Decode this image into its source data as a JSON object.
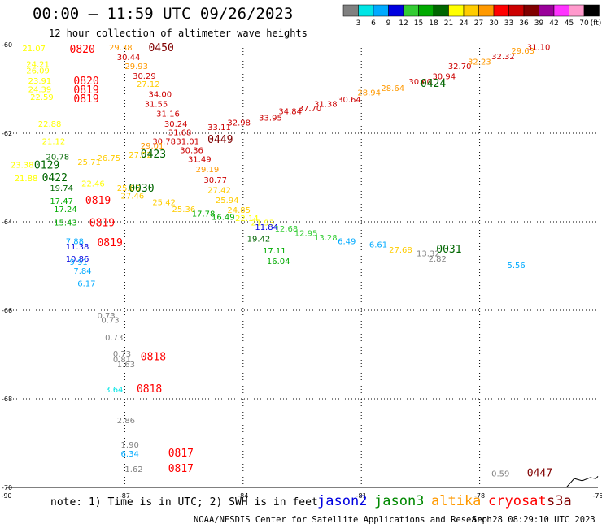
{
  "header": {
    "title": "00:00 – 11:59 UTC 09/26/2023",
    "subtitle": "12 hour collection of altimeter wave heights"
  },
  "colorbar": {
    "unit": "(ft)",
    "swatches": [
      {
        "color": "#808080",
        "label": "3"
      },
      {
        "color": "#00e5e5",
        "label": "6"
      },
      {
        "color": "#00aaff",
        "label": "9"
      },
      {
        "color": "#0000e0",
        "label": "12"
      },
      {
        "color": "#33cc33",
        "label": "15"
      },
      {
        "color": "#00aa00",
        "label": "18"
      },
      {
        "color": "#006600",
        "label": "21"
      },
      {
        "color": "#ffff00",
        "label": "24"
      },
      {
        "color": "#ffcc00",
        "label": "27"
      },
      {
        "color": "#ff9900",
        "label": "30"
      },
      {
        "color": "#ff0000",
        "label": "33"
      },
      {
        "color": "#cc0000",
        "label": "36"
      },
      {
        "color": "#800000",
        "label": "39"
      },
      {
        "color": "#990099",
        "label": "42"
      },
      {
        "color": "#ff33ff",
        "label": "45"
      },
      {
        "color": "#ff99cc",
        "label": "70"
      },
      {
        "color": "#000000",
        "label": ""
      }
    ]
  },
  "map": {
    "lon_range": [
      -90,
      -75
    ],
    "lat_range": [
      -70,
      -60
    ],
    "lon_ticks": [
      "-90",
      "-87",
      "-84",
      "-81",
      "-78",
      "-75"
    ],
    "lat_ticks": [
      "-60",
      "-62",
      "-64",
      "-66",
      "-68",
      "-70"
    ],
    "tick_values_lon": [
      -90,
      -87,
      -84,
      -81,
      -78,
      -75
    ],
    "tick_values_lat": [
      -60,
      -62,
      -64,
      -66,
      -68,
      -70
    ],
    "coastline": [
      [
        -75.8,
        -70
      ],
      [
        -75.6,
        -69.8
      ],
      [
        -75.4,
        -69.85
      ],
      [
        -75.2,
        -69.78
      ],
      [
        -75.05,
        -69.8
      ],
      [
        -75,
        -69.75
      ]
    ]
  },
  "observations": [
    {
      "t": "21.07",
      "c": "#ffff00",
      "lon": -89.6,
      "lat": -60.15
    },
    {
      "t": "0820",
      "c": "#ff0000",
      "lon": -88.4,
      "lat": -60.18,
      "big": true
    },
    {
      "t": "24.21",
      "c": "#ffff00",
      "lon": -89.5,
      "lat": -60.5
    },
    {
      "t": "26.09",
      "c": "#ffff00",
      "lon": -89.5,
      "lat": -60.65
    },
    {
      "t": "23.91",
      "c": "#ffff00",
      "lon": -89.45,
      "lat": -60.88
    },
    {
      "t": "0820",
      "c": "#ff0000",
      "lon": -88.3,
      "lat": -60.9,
      "big": true
    },
    {
      "t": "24.39",
      "c": "#ffff00",
      "lon": -89.45,
      "lat": -61.07
    },
    {
      "t": "0819",
      "c": "#ff0000",
      "lon": -88.3,
      "lat": -61.1,
      "big": true
    },
    {
      "t": "22.59",
      "c": "#ffff00",
      "lon": -89.4,
      "lat": -61.25
    },
    {
      "t": "0819",
      "c": "#ff0000",
      "lon": -88.3,
      "lat": -61.3,
      "big": true
    },
    {
      "t": "22.88",
      "c": "#ffff00",
      "lon": -89.2,
      "lat": -61.85
    },
    {
      "t": "21.12",
      "c": "#ffff00",
      "lon": -89.1,
      "lat": -62.25
    },
    {
      "t": "20.78",
      "c": "#006600",
      "lon": -89.0,
      "lat": -62.6
    },
    {
      "t": "23.38",
      "c": "#ffff00",
      "lon": -89.9,
      "lat": -62.78
    },
    {
      "t": "25.71",
      "c": "#ffcc00",
      "lon": -88.2,
      "lat": -62.72
    },
    {
      "t": "0129",
      "c": "#006600",
      "lon": -89.3,
      "lat": -62.8,
      "big": true
    },
    {
      "t": "26.75",
      "c": "#ffcc00",
      "lon": -87.7,
      "lat": -62.62
    },
    {
      "t": "21.88",
      "c": "#ffff00",
      "lon": -89.8,
      "lat": -63.08
    },
    {
      "t": "0422",
      "c": "#006600",
      "lon": -89.1,
      "lat": -63.08,
      "big": true
    },
    {
      "t": "19.74",
      "c": "#006600",
      "lon": -88.9,
      "lat": -63.3
    },
    {
      "t": "22.46",
      "c": "#ffff00",
      "lon": -88.1,
      "lat": -63.2
    },
    {
      "t": "25.06",
      "c": "#ffcc00",
      "lon": -87.2,
      "lat": -63.3
    },
    {
      "t": "0030",
      "c": "#006600",
      "lon": -86.9,
      "lat": -63.32,
      "big": true
    },
    {
      "t": "27.52",
      "c": "#ffcc00",
      "lon": -86.9,
      "lat": -62.55
    },
    {
      "t": "27.46",
      "c": "#ffcc00",
      "lon": -87.1,
      "lat": -63.48
    },
    {
      "t": "17.47",
      "c": "#00aa00",
      "lon": -88.9,
      "lat": -63.6
    },
    {
      "t": "0819",
      "c": "#ff0000",
      "lon": -88.0,
      "lat": -63.6,
      "big": true
    },
    {
      "t": "17.24",
      "c": "#00aa00",
      "lon": -88.8,
      "lat": -63.78
    },
    {
      "t": "25.42",
      "c": "#ffcc00",
      "lon": -86.3,
      "lat": -63.62
    },
    {
      "t": "25.36",
      "c": "#ffcc00",
      "lon": -85.8,
      "lat": -63.78
    },
    {
      "t": "17.78",
      "c": "#00aa00",
      "lon": -85.3,
      "lat": -63.88
    },
    {
      "t": "16.49",
      "c": "#00aa00",
      "lon": -84.8,
      "lat": -63.95
    },
    {
      "t": "15.43",
      "c": "#00aa00",
      "lon": -88.8,
      "lat": -64.08
    },
    {
      "t": "0819",
      "c": "#ff0000",
      "lon": -87.9,
      "lat": -64.1,
      "big": true
    },
    {
      "t": "7.88",
      "c": "#00aaff",
      "lon": -88.5,
      "lat": -64.5
    },
    {
      "t": "11.38",
      "c": "#0000e0",
      "lon": -88.5,
      "lat": -64.62
    },
    {
      "t": "0819",
      "c": "#ff0000",
      "lon": -87.7,
      "lat": -64.55,
      "big": true
    },
    {
      "t": "10.86",
      "c": "#0000e0",
      "lon": -88.5,
      "lat": -64.9
    },
    {
      "t": "9.91",
      "c": "#00aaff",
      "lon": -88.4,
      "lat": -64.97
    },
    {
      "t": "7.84",
      "c": "#00aaff",
      "lon": -88.3,
      "lat": -65.17
    },
    {
      "t": "6.17",
      "c": "#00aaff",
      "lon": -88.2,
      "lat": -65.46
    },
    {
      "t": "29.38",
      "c": "#ff9900",
      "lon": -87.4,
      "lat": -60.13
    },
    {
      "t": "0450",
      "c": "#800000",
      "lon": -86.4,
      "lat": -60.15,
      "big": true
    },
    {
      "t": "30.44",
      "c": "#cc0000",
      "lon": -87.2,
      "lat": -60.35
    },
    {
      "t": "29.93",
      "c": "#ff9900",
      "lon": -87.0,
      "lat": -60.55
    },
    {
      "t": "30.29",
      "c": "#cc0000",
      "lon": -86.8,
      "lat": -60.77
    },
    {
      "t": "27.12",
      "c": "#ffcc00",
      "lon": -86.7,
      "lat": -60.95
    },
    {
      "t": "34.00",
      "c": "#cc0000",
      "lon": -86.4,
      "lat": -61.18
    },
    {
      "t": "31.55",
      "c": "#cc0000",
      "lon": -86.5,
      "lat": -61.4
    },
    {
      "t": "31.16",
      "c": "#cc0000",
      "lon": -86.2,
      "lat": -61.62
    },
    {
      "t": "30.24",
      "c": "#cc0000",
      "lon": -86.0,
      "lat": -61.85
    },
    {
      "t": "31.68",
      "c": "#cc0000",
      "lon": -85.9,
      "lat": -62.05
    },
    {
      "t": "30.78",
      "c": "#cc0000",
      "lon": -86.3,
      "lat": -62.25
    },
    {
      "t": "31.01",
      "c": "#cc0000",
      "lon": -85.7,
      "lat": -62.25
    },
    {
      "t": "0449",
      "c": "#800000",
      "lon": -84.9,
      "lat": -62.22,
      "big": true
    },
    {
      "t": "29.01",
      "c": "#ff9900",
      "lon": -86.6,
      "lat": -62.35
    },
    {
      "t": "0423",
      "c": "#006600",
      "lon": -86.6,
      "lat": -62.55,
      "big": true
    },
    {
      "t": "30.36",
      "c": "#cc0000",
      "lon": -85.6,
      "lat": -62.45
    },
    {
      "t": "31.49",
      "c": "#cc0000",
      "lon": -85.4,
      "lat": -62.65
    },
    {
      "t": "29.19",
      "c": "#ff9900",
      "lon": -85.2,
      "lat": -62.88
    },
    {
      "t": "30.77",
      "c": "#cc0000",
      "lon": -85.0,
      "lat": -63.12
    },
    {
      "t": "27.42",
      "c": "#ffcc00",
      "lon": -84.9,
      "lat": -63.35
    },
    {
      "t": "25.94",
      "c": "#ffcc00",
      "lon": -84.7,
      "lat": -63.58
    },
    {
      "t": "24.85",
      "c": "#ffcc00",
      "lon": -84.4,
      "lat": -63.8
    },
    {
      "t": "22.14",
      "c": "#ffff00",
      "lon": -84.2,
      "lat": -63.98
    },
    {
      "t": "21.93",
      "c": "#ffff00",
      "lon": -83.8,
      "lat": -64.08
    },
    {
      "t": "11.84",
      "c": "#0000e0",
      "lon": -83.7,
      "lat": -64.18
    },
    {
      "t": "19.42",
      "c": "#006600",
      "lon": -83.9,
      "lat": -64.45
    },
    {
      "t": "12.68",
      "c": "#33cc33",
      "lon": -83.2,
      "lat": -64.22
    },
    {
      "t": "12.95",
      "c": "#33cc33",
      "lon": -82.7,
      "lat": -64.32
    },
    {
      "t": "13.28",
      "c": "#33cc33",
      "lon": -82.2,
      "lat": -64.42
    },
    {
      "t": "6.49",
      "c": "#00aaff",
      "lon": -81.6,
      "lat": -64.5
    },
    {
      "t": "17.11",
      "c": "#00aa00",
      "lon": -83.5,
      "lat": -64.72
    },
    {
      "t": "16.04",
      "c": "#00aa00",
      "lon": -83.4,
      "lat": -64.95
    },
    {
      "t": "6.61",
      "c": "#00aaff",
      "lon": -80.8,
      "lat": -64.58
    },
    {
      "t": "27.68",
      "c": "#ffcc00",
      "lon": -80.3,
      "lat": -64.7
    },
    {
      "t": "13.32",
      "c": "#808080",
      "lon": -79.6,
      "lat": -64.78
    },
    {
      "t": "0031",
      "c": "#006600",
      "lon": -79.1,
      "lat": -64.7,
      "big": true
    },
    {
      "t": "2.82",
      "c": "#808080",
      "lon": -79.3,
      "lat": -64.9
    },
    {
      "t": "5.56",
      "c": "#00aaff",
      "lon": -77.3,
      "lat": -65.05
    },
    {
      "t": "33.11",
      "c": "#cc0000",
      "lon": -84.9,
      "lat": -61.93
    },
    {
      "t": "32.98",
      "c": "#cc0000",
      "lon": -84.4,
      "lat": -61.83
    },
    {
      "t": "33.95",
      "c": "#cc0000",
      "lon": -83.6,
      "lat": -61.72
    },
    {
      "t": "34.84",
      "c": "#cc0000",
      "lon": -83.1,
      "lat": -61.57
    },
    {
      "t": "37.70",
      "c": "#cc0000",
      "lon": -82.6,
      "lat": -61.5
    },
    {
      "t": "31.38",
      "c": "#cc0000",
      "lon": -82.2,
      "lat": -61.4
    },
    {
      "t": "30.64",
      "c": "#cc0000",
      "lon": -81.6,
      "lat": -61.3
    },
    {
      "t": "28.94",
      "c": "#ff9900",
      "lon": -81.1,
      "lat": -61.15
    },
    {
      "t": "28.64",
      "c": "#ff9900",
      "lon": -80.5,
      "lat": -61.05
    },
    {
      "t": "30.60",
      "c": "#cc0000",
      "lon": -79.8,
      "lat": -60.9
    },
    {
      "t": "30.94",
      "c": "#cc0000",
      "lon": -79.2,
      "lat": -60.78
    },
    {
      "t": "0424",
      "c": "#006600",
      "lon": -79.5,
      "lat": -60.95,
      "big": true
    },
    {
      "t": "32.70",
      "c": "#cc0000",
      "lon": -78.8,
      "lat": -60.55
    },
    {
      "t": "32.23",
      "c": "#ff9900",
      "lon": -78.3,
      "lat": -60.45
    },
    {
      "t": "32.32",
      "c": "#cc0000",
      "lon": -77.7,
      "lat": -60.33
    },
    {
      "t": "29.63",
      "c": "#ff9900",
      "lon": -77.2,
      "lat": -60.2
    },
    {
      "t": "31.10",
      "c": "#cc0000",
      "lon": -76.8,
      "lat": -60.12
    },
    {
      "t": "0.73",
      "c": "#808080",
      "lon": -87.7,
      "lat": -66.18
    },
    {
      "t": "0.73",
      "c": "#808080",
      "lon": -87.6,
      "lat": -66.28
    },
    {
      "t": "0.73",
      "c": "#808080",
      "lon": -87.5,
      "lat": -66.68
    },
    {
      "t": "0.73",
      "c": "#808080",
      "lon": -87.3,
      "lat": -67.05
    },
    {
      "t": "0.81",
      "c": "#808080",
      "lon": -87.3,
      "lat": -67.17
    },
    {
      "t": "1.63",
      "c": "#808080",
      "lon": -87.2,
      "lat": -67.28
    },
    {
      "t": "0818",
      "c": "#ff0000",
      "lon": -86.6,
      "lat": -67.13,
      "big": true
    },
    {
      "t": "3.64",
      "c": "#00e5e5",
      "lon": -87.5,
      "lat": -67.85
    },
    {
      "t": "0818",
      "c": "#ff0000",
      "lon": -86.7,
      "lat": -67.85,
      "big": true
    },
    {
      "t": "2.86",
      "c": "#808080",
      "lon": -87.2,
      "lat": -68.55
    },
    {
      "t": "1.90",
      "c": "#808080",
      "lon": -87.1,
      "lat": -69.1
    },
    {
      "t": "6.34",
      "c": "#00aaff",
      "lon": -87.1,
      "lat": -69.3
    },
    {
      "t": "0817",
      "c": "#ff0000",
      "lon": -85.9,
      "lat": -69.3,
      "big": true
    },
    {
      "t": "1.62",
      "c": "#808080",
      "lon": -87.0,
      "lat": -69.65
    },
    {
      "t": "0817",
      "c": "#ff0000",
      "lon": -85.9,
      "lat": -69.65,
      "big": true
    },
    {
      "t": "0.59",
      "c": "#808080",
      "lon": -77.7,
      "lat": -69.75
    },
    {
      "t": "0447",
      "c": "#800000",
      "lon": -76.8,
      "lat": -69.75,
      "big": true
    }
  ],
  "footer": {
    "note": "note: 1) Time is in UTC; 2) SWH is in feet",
    "credit": "NOAA/NESDIS Center for Satellite Applications and Research",
    "stamp": "Sep 28 08:29:10 UTC 2023",
    "satellites": [
      {
        "name": "jason2",
        "color": "#0000e0"
      },
      {
        "name": "jason3",
        "color": "#008800"
      },
      {
        "name": "altika",
        "color": "#ff9900"
      },
      {
        "name": "cryosat",
        "color": "#ff0000"
      },
      {
        "name": "s3a",
        "color": "#800000"
      }
    ]
  }
}
